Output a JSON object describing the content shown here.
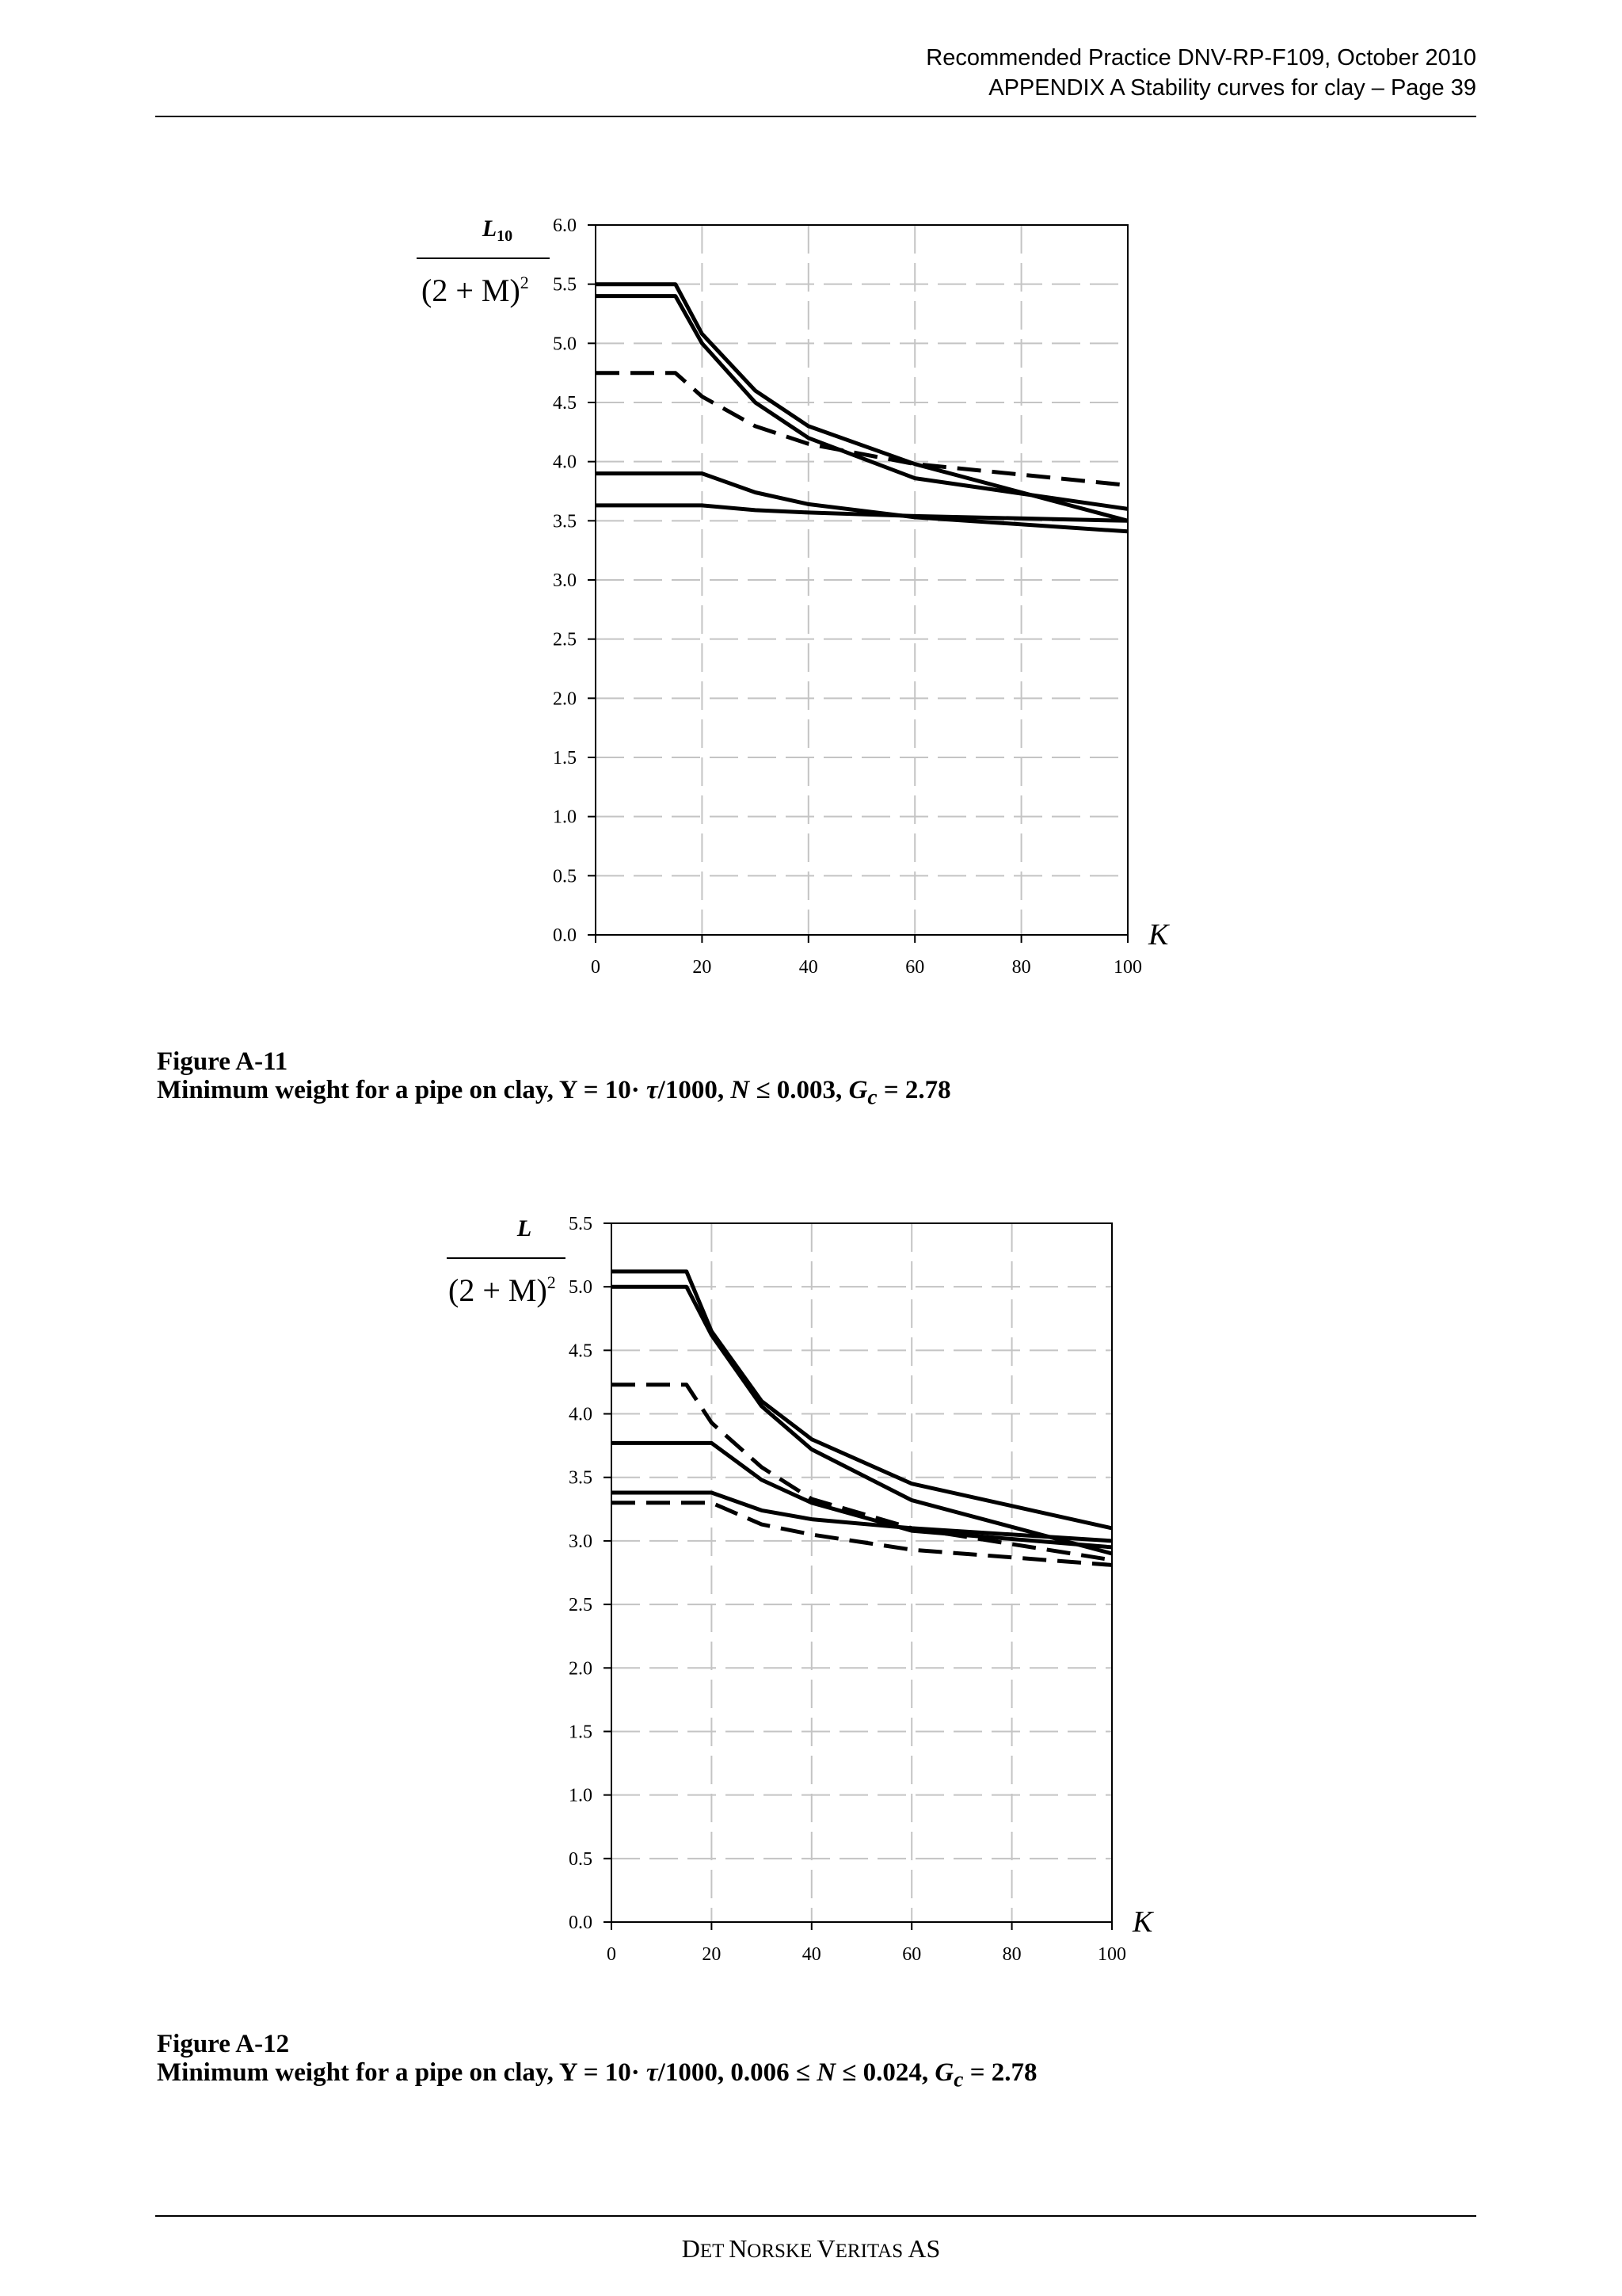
{
  "header": {
    "line1": "Recommended Practice DNV-RP-F109,  October 2010",
    "line2": "APPENDIX A Stability curves for clay  –  Page 39"
  },
  "figures": [
    {
      "caption_title": "Figure A-11",
      "caption_prefix": "Minimum weight for a pipe on clay, Y = 10· ",
      "caption_tau": "τ",
      "caption_mid": "/1000, ",
      "caption_n": "N",
      "caption_mid2": " ≤ 0.003, ",
      "caption_g": "G",
      "caption_g_sub": "c",
      "caption_end": " = 2.78"
    },
    {
      "caption_title": "Figure A-12",
      "caption_prefix": "Minimum weight for a pipe on clay, Y = 10· ",
      "caption_tau": "τ",
      "caption_mid": "/1000, 0.006 ≤ ",
      "caption_n": "N",
      "caption_mid2": " ≤ 0.024, ",
      "caption_g": "G",
      "caption_g_sub": "c",
      "caption_end": " = 2.78"
    }
  ],
  "footer": {
    "d": "D",
    "et": "ET ",
    "n": "N",
    "orske": "ORSKE ",
    "v": "V",
    "eritas": "ERITAS",
    "as": " AS"
  },
  "chart_data": [
    {
      "type": "line",
      "ylabel_num_main": "L",
      "ylabel_num_sub": "10",
      "ylabel_den": "(2 + M)",
      "ylabel_den_sup": "2",
      "xlabel": "K",
      "xlim": [
        0,
        100
      ],
      "ylim": [
        0,
        6
      ],
      "xticks": [
        0,
        20,
        40,
        60,
        80,
        100
      ],
      "yticks": [
        0.0,
        0.5,
        1.0,
        1.5,
        2.0,
        2.5,
        3.0,
        3.5,
        4.0,
        4.5,
        5.0,
        5.5,
        6.0
      ],
      "xtick_labels": [
        "0",
        "20",
        "40",
        "60",
        "80",
        "100"
      ],
      "ytick_labels": [
        "0.0",
        "0.5",
        "1.0",
        "1.5",
        "2.0",
        "2.5",
        "3.0",
        "3.5",
        "4.0",
        "4.5",
        "5.0",
        "5.5",
        "6.0"
      ],
      "grid": true,
      "series": [
        {
          "style": "solid",
          "x": [
            0,
            15,
            20,
            30,
            40,
            60,
            100
          ],
          "y": [
            5.5,
            5.5,
            5.08,
            4.6,
            4.3,
            3.98,
            3.5
          ]
        },
        {
          "style": "solid",
          "x": [
            0,
            15,
            20,
            30,
            40,
            60,
            100
          ],
          "y": [
            5.4,
            5.4,
            5.0,
            4.5,
            4.2,
            3.86,
            3.6
          ]
        },
        {
          "style": "dashed",
          "x": [
            0,
            15,
            20,
            30,
            40,
            60,
            100
          ],
          "y": [
            4.75,
            4.75,
            4.55,
            4.3,
            4.15,
            3.98,
            3.8
          ]
        },
        {
          "style": "solid",
          "x": [
            0,
            20,
            30,
            40,
            60,
            100
          ],
          "y": [
            3.9,
            3.9,
            3.74,
            3.64,
            3.53,
            3.41
          ]
        },
        {
          "style": "solid",
          "x": [
            0,
            20,
            30,
            40,
            60,
            100
          ],
          "y": [
            3.63,
            3.63,
            3.59,
            3.57,
            3.54,
            3.5
          ]
        }
      ]
    },
    {
      "type": "line",
      "ylabel_num_main": "L",
      "ylabel_num_sub": "",
      "ylabel_den": "(2 + M)",
      "ylabel_den_sup": "2",
      "xlabel": "K",
      "xlim": [
        0,
        100
      ],
      "ylim": [
        0,
        5.5
      ],
      "xticks": [
        0,
        20,
        40,
        60,
        80,
        100
      ],
      "yticks": [
        0.0,
        0.5,
        1.0,
        1.5,
        2.0,
        2.5,
        3.0,
        3.5,
        4.0,
        4.5,
        5.0,
        5.5
      ],
      "xtick_labels": [
        "0",
        "20",
        "40",
        "60",
        "80",
        "100"
      ],
      "ytick_labels": [
        "0.0",
        "0.5",
        "1.0",
        "1.5",
        "2.0",
        "2.5",
        "3.0",
        "3.5",
        "4.0",
        "4.5",
        "5.0",
        "5.5"
      ],
      "grid": true,
      "series": [
        {
          "style": "solid",
          "x": [
            0,
            15,
            20,
            30,
            40,
            60,
            100
          ],
          "y": [
            5.12,
            5.12,
            4.65,
            4.1,
            3.8,
            3.45,
            3.1
          ]
        },
        {
          "style": "solid",
          "x": [
            0,
            15,
            20,
            30,
            40,
            60,
            100
          ],
          "y": [
            5.0,
            5.0,
            4.62,
            4.06,
            3.72,
            3.32,
            2.9
          ]
        },
        {
          "style": "dashed",
          "x": [
            0,
            15,
            20,
            30,
            40,
            60,
            100
          ],
          "y": [
            4.23,
            4.23,
            3.93,
            3.58,
            3.33,
            3.1,
            2.85
          ]
        },
        {
          "style": "solid",
          "x": [
            0,
            20,
            30,
            40,
            60,
            100
          ],
          "y": [
            3.77,
            3.77,
            3.48,
            3.3,
            3.08,
            2.95
          ]
        },
        {
          "style": "solid",
          "x": [
            0,
            20,
            30,
            40,
            60,
            100
          ],
          "y": [
            3.38,
            3.38,
            3.24,
            3.17,
            3.1,
            3.0
          ]
        },
        {
          "style": "dashed",
          "x": [
            0,
            20,
            30,
            40,
            60,
            100
          ],
          "y": [
            3.3,
            3.3,
            3.13,
            3.05,
            2.93,
            2.81
          ]
        }
      ]
    }
  ]
}
